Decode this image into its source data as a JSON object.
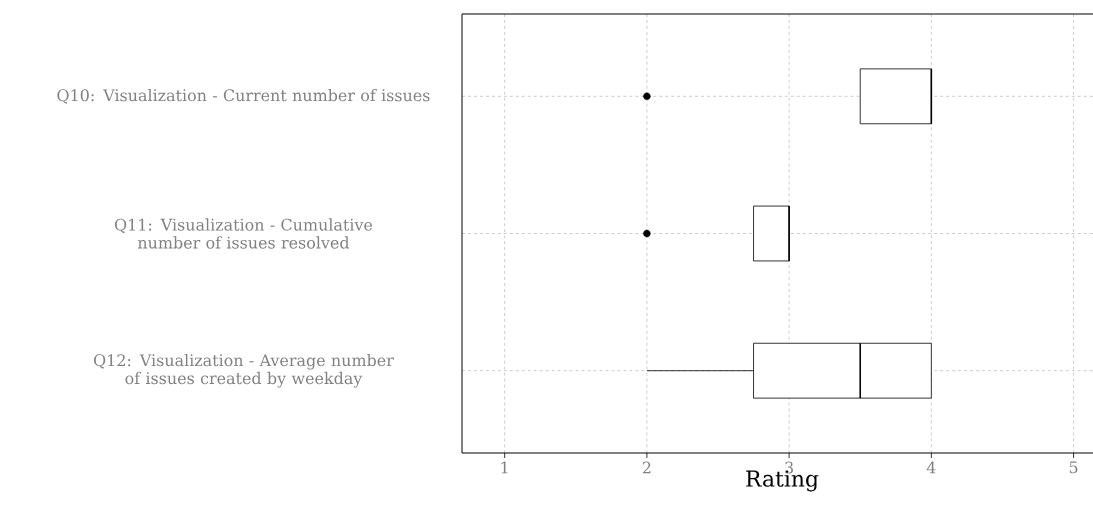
{
  "chart_data": {
    "type": "box",
    "orientation": "horizontal",
    "xlabel": "Rating",
    "categories": [
      "Q10: Visualization - Current number of issues",
      "Q11: Visualization - Cumulative number of issues resolved",
      "Q12: Visualization - Average number of issues created by weekday"
    ],
    "boxes": [
      {
        "low": 3.5,
        "q1": 3.5,
        "median": 4,
        "q3": 4,
        "high": 4,
        "outliers": [
          2
        ]
      },
      {
        "low": 2.75,
        "q1": 2.75,
        "median": 3,
        "q3": 3,
        "high": 3,
        "outliers": [
          2
        ]
      },
      {
        "low": 2,
        "q1": 2.75,
        "median": 3.5,
        "q3": 4,
        "high": 4
      }
    ],
    "xlim": [
      0.7,
      5.2
    ],
    "xticks": [
      1,
      2,
      3,
      4,
      5
    ],
    "grid": true
  }
}
